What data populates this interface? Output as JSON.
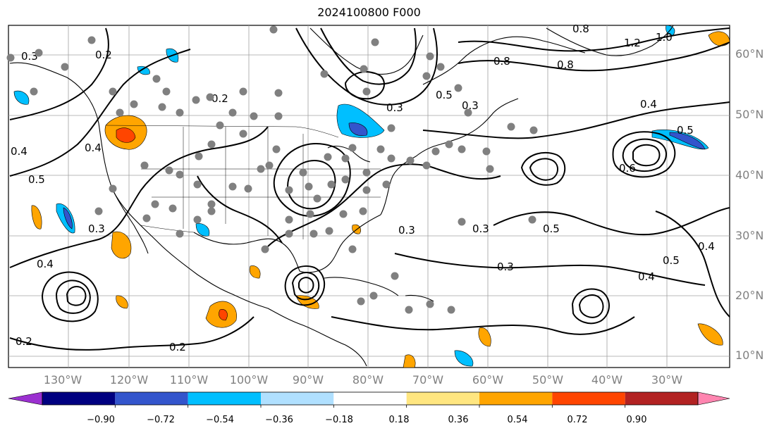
{
  "title": "2024100800 F000",
  "lon_labels": [
    "130°W",
    "120°W",
    "110°W",
    "100°W",
    "90°W",
    "80°W",
    "70°W",
    "60°W",
    "50°W",
    "40°W",
    "30°W"
  ],
  "lat_labels": [
    "60°N",
    "50°N",
    "40°N",
    "30°N",
    "20°N",
    "10°N"
  ],
  "contour_labels": [
    "0.2",
    "0.3",
    "0.4",
    "0.5",
    "0.6",
    "0.8",
    "1.0",
    "1.2"
  ],
  "colorbar": {
    "ticks": [
      "−0.90",
      "−0.72",
      "−0.54",
      "−0.36",
      "−0.18",
      "0.18",
      "0.36",
      "0.54",
      "0.72",
      "0.90"
    ],
    "colors": [
      "#9b30d0",
      "#000080",
      "#3355cc",
      "#00bfff",
      "#b0e0ff",
      "#ffffff",
      "#ffe680",
      "#ffa500",
      "#ff4500",
      "#b22222",
      "#ff85b0"
    ]
  }
}
